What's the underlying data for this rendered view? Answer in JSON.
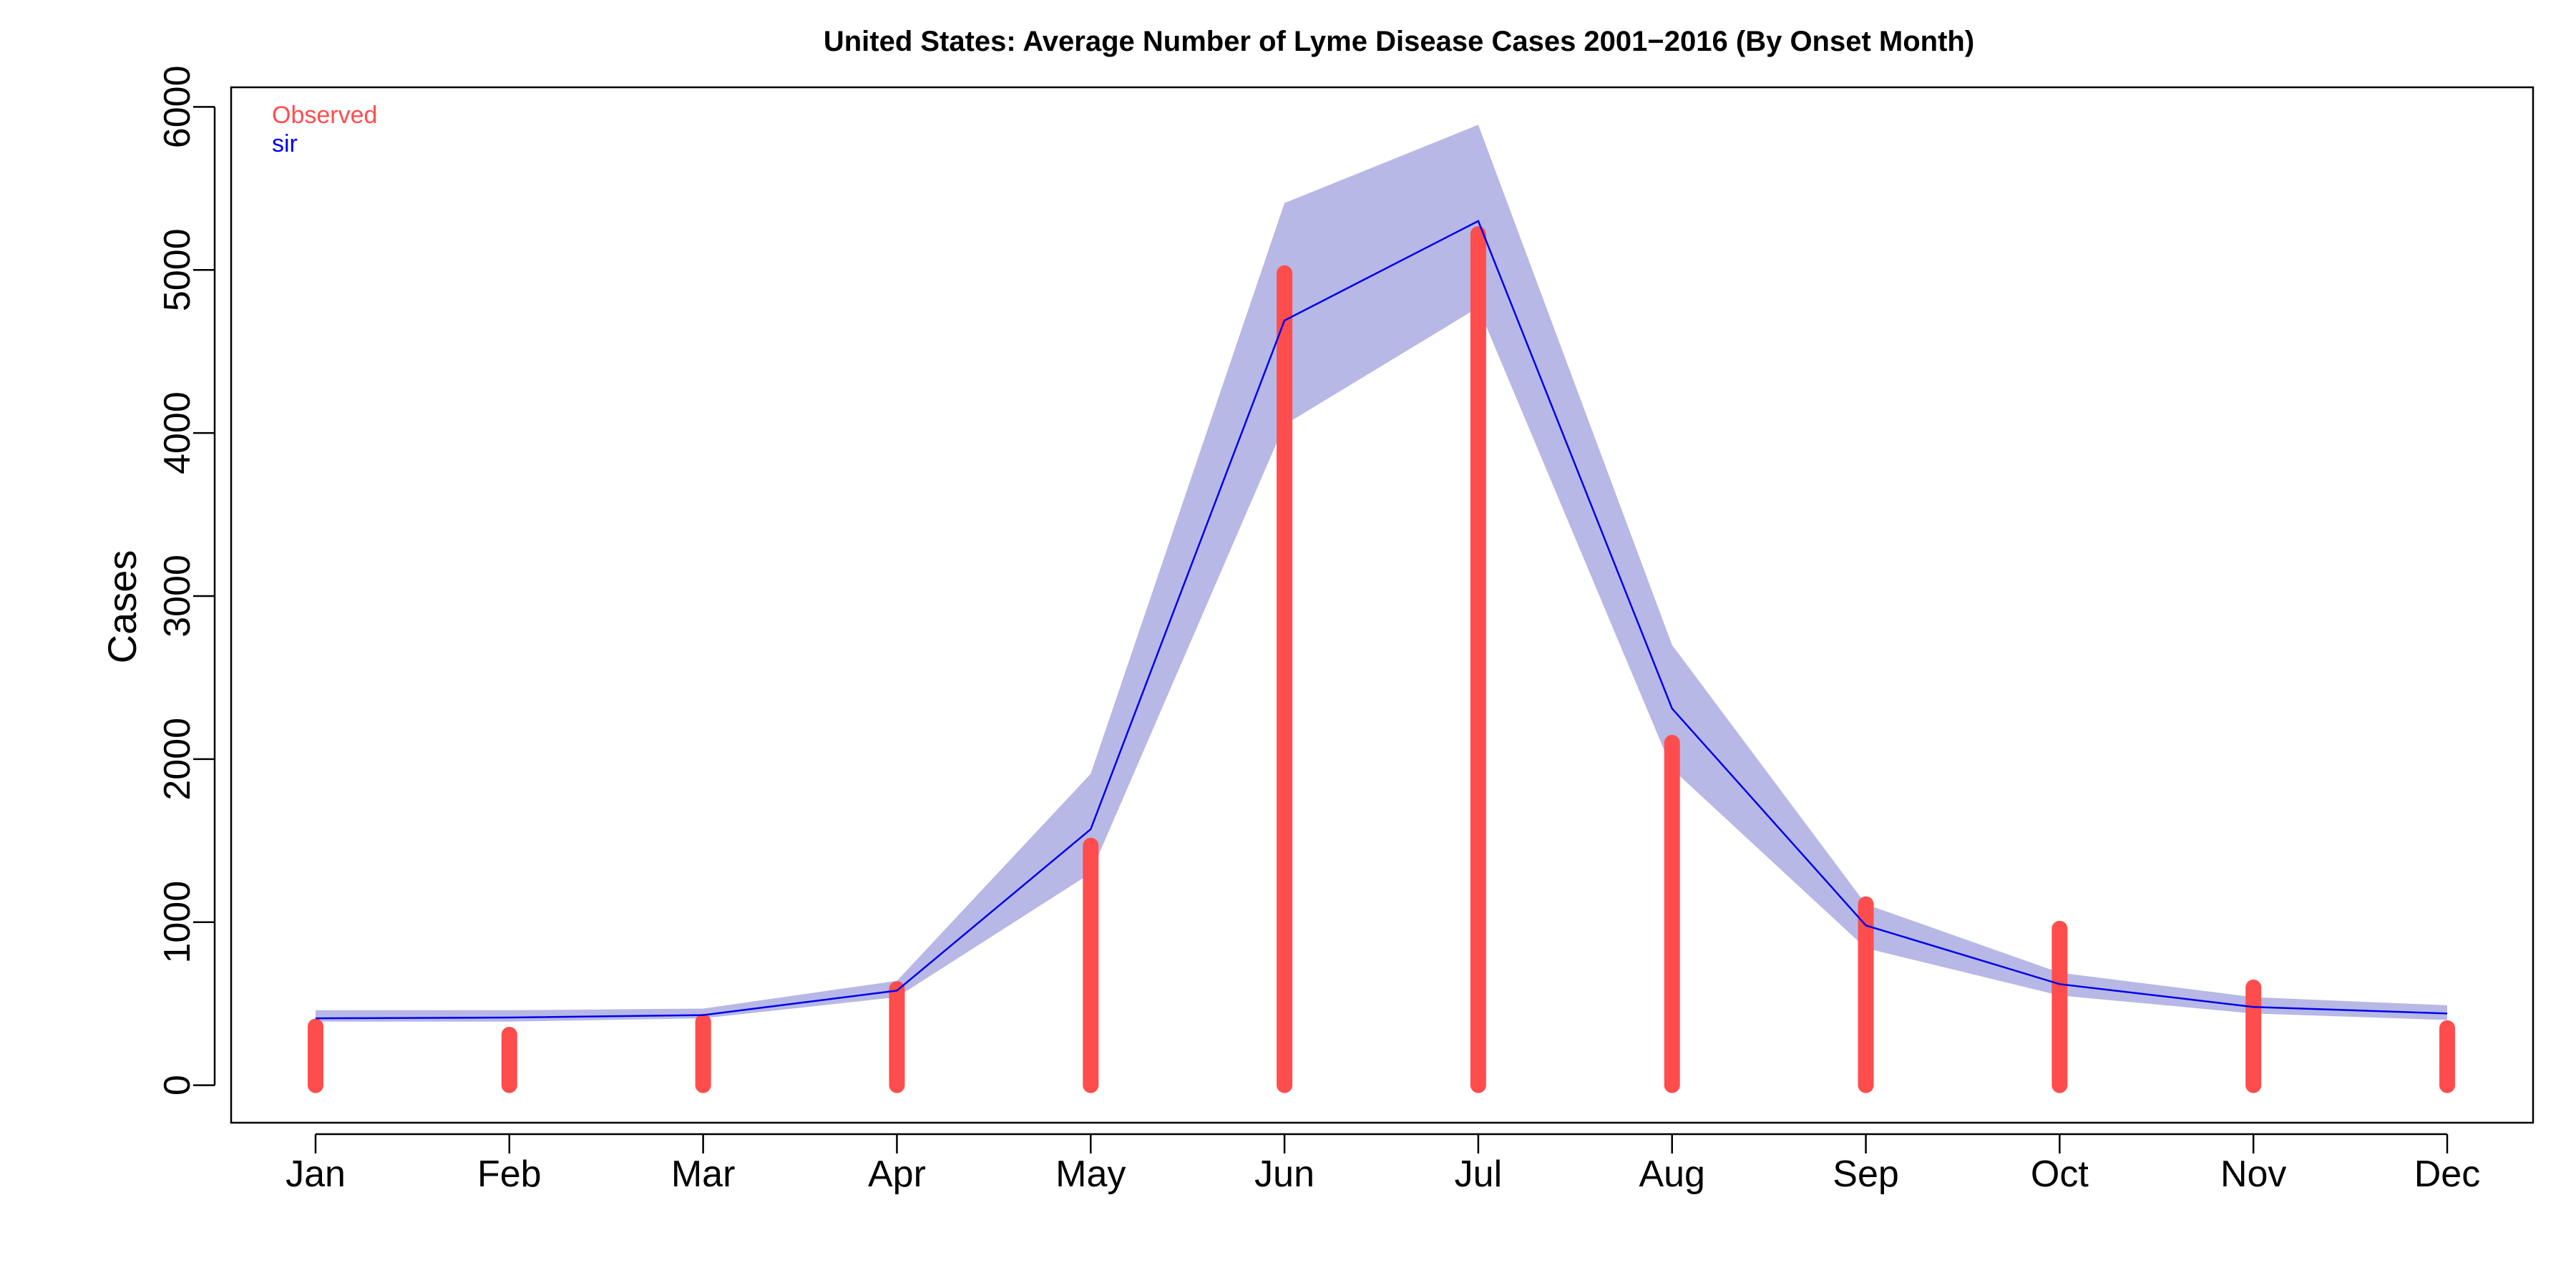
{
  "chart_data": {
    "type": "bar",
    "title": "United States: Average Number of Lyme Disease Cases 2001−2016 (By Onset Month)",
    "xlabel": "",
    "ylabel": "Cases",
    "categories": [
      "Jan",
      "Feb",
      "Mar",
      "Apr",
      "May",
      "Jun",
      "Jul",
      "Aug",
      "Sep",
      "Oct",
      "Nov",
      "Dec"
    ],
    "y_ticks": [
      "0",
      "1000",
      "2000",
      "3000",
      "4000",
      "5000",
      "6000"
    ],
    "ylim": [
      -230,
      6120
    ],
    "grid": false,
    "legend_position": "top-left",
    "series": [
      {
        "name": "Observed",
        "type": "bar",
        "color": "#ff4d4d",
        "values": [
          360,
          310,
          390,
          590,
          1470,
          4980,
          5220,
          2100,
          1110,
          960,
          600,
          350
        ]
      },
      {
        "name": "sir",
        "type": "line",
        "color": "#0000ee",
        "values": [
          410,
          415,
          430,
          580,
          1570,
          4690,
          5300,
          2310,
          980,
          620,
          480,
          440
        ],
        "band_color": "#b8b8e6",
        "band_lower": [
          390,
          390,
          410,
          540,
          1300,
          4050,
          4770,
          1940,
          840,
          550,
          440,
          400
        ],
        "band_upper": [
          460,
          460,
          470,
          640,
          1910,
          5410,
          5890,
          2700,
          1110,
          690,
          540,
          490
        ]
      }
    ]
  }
}
